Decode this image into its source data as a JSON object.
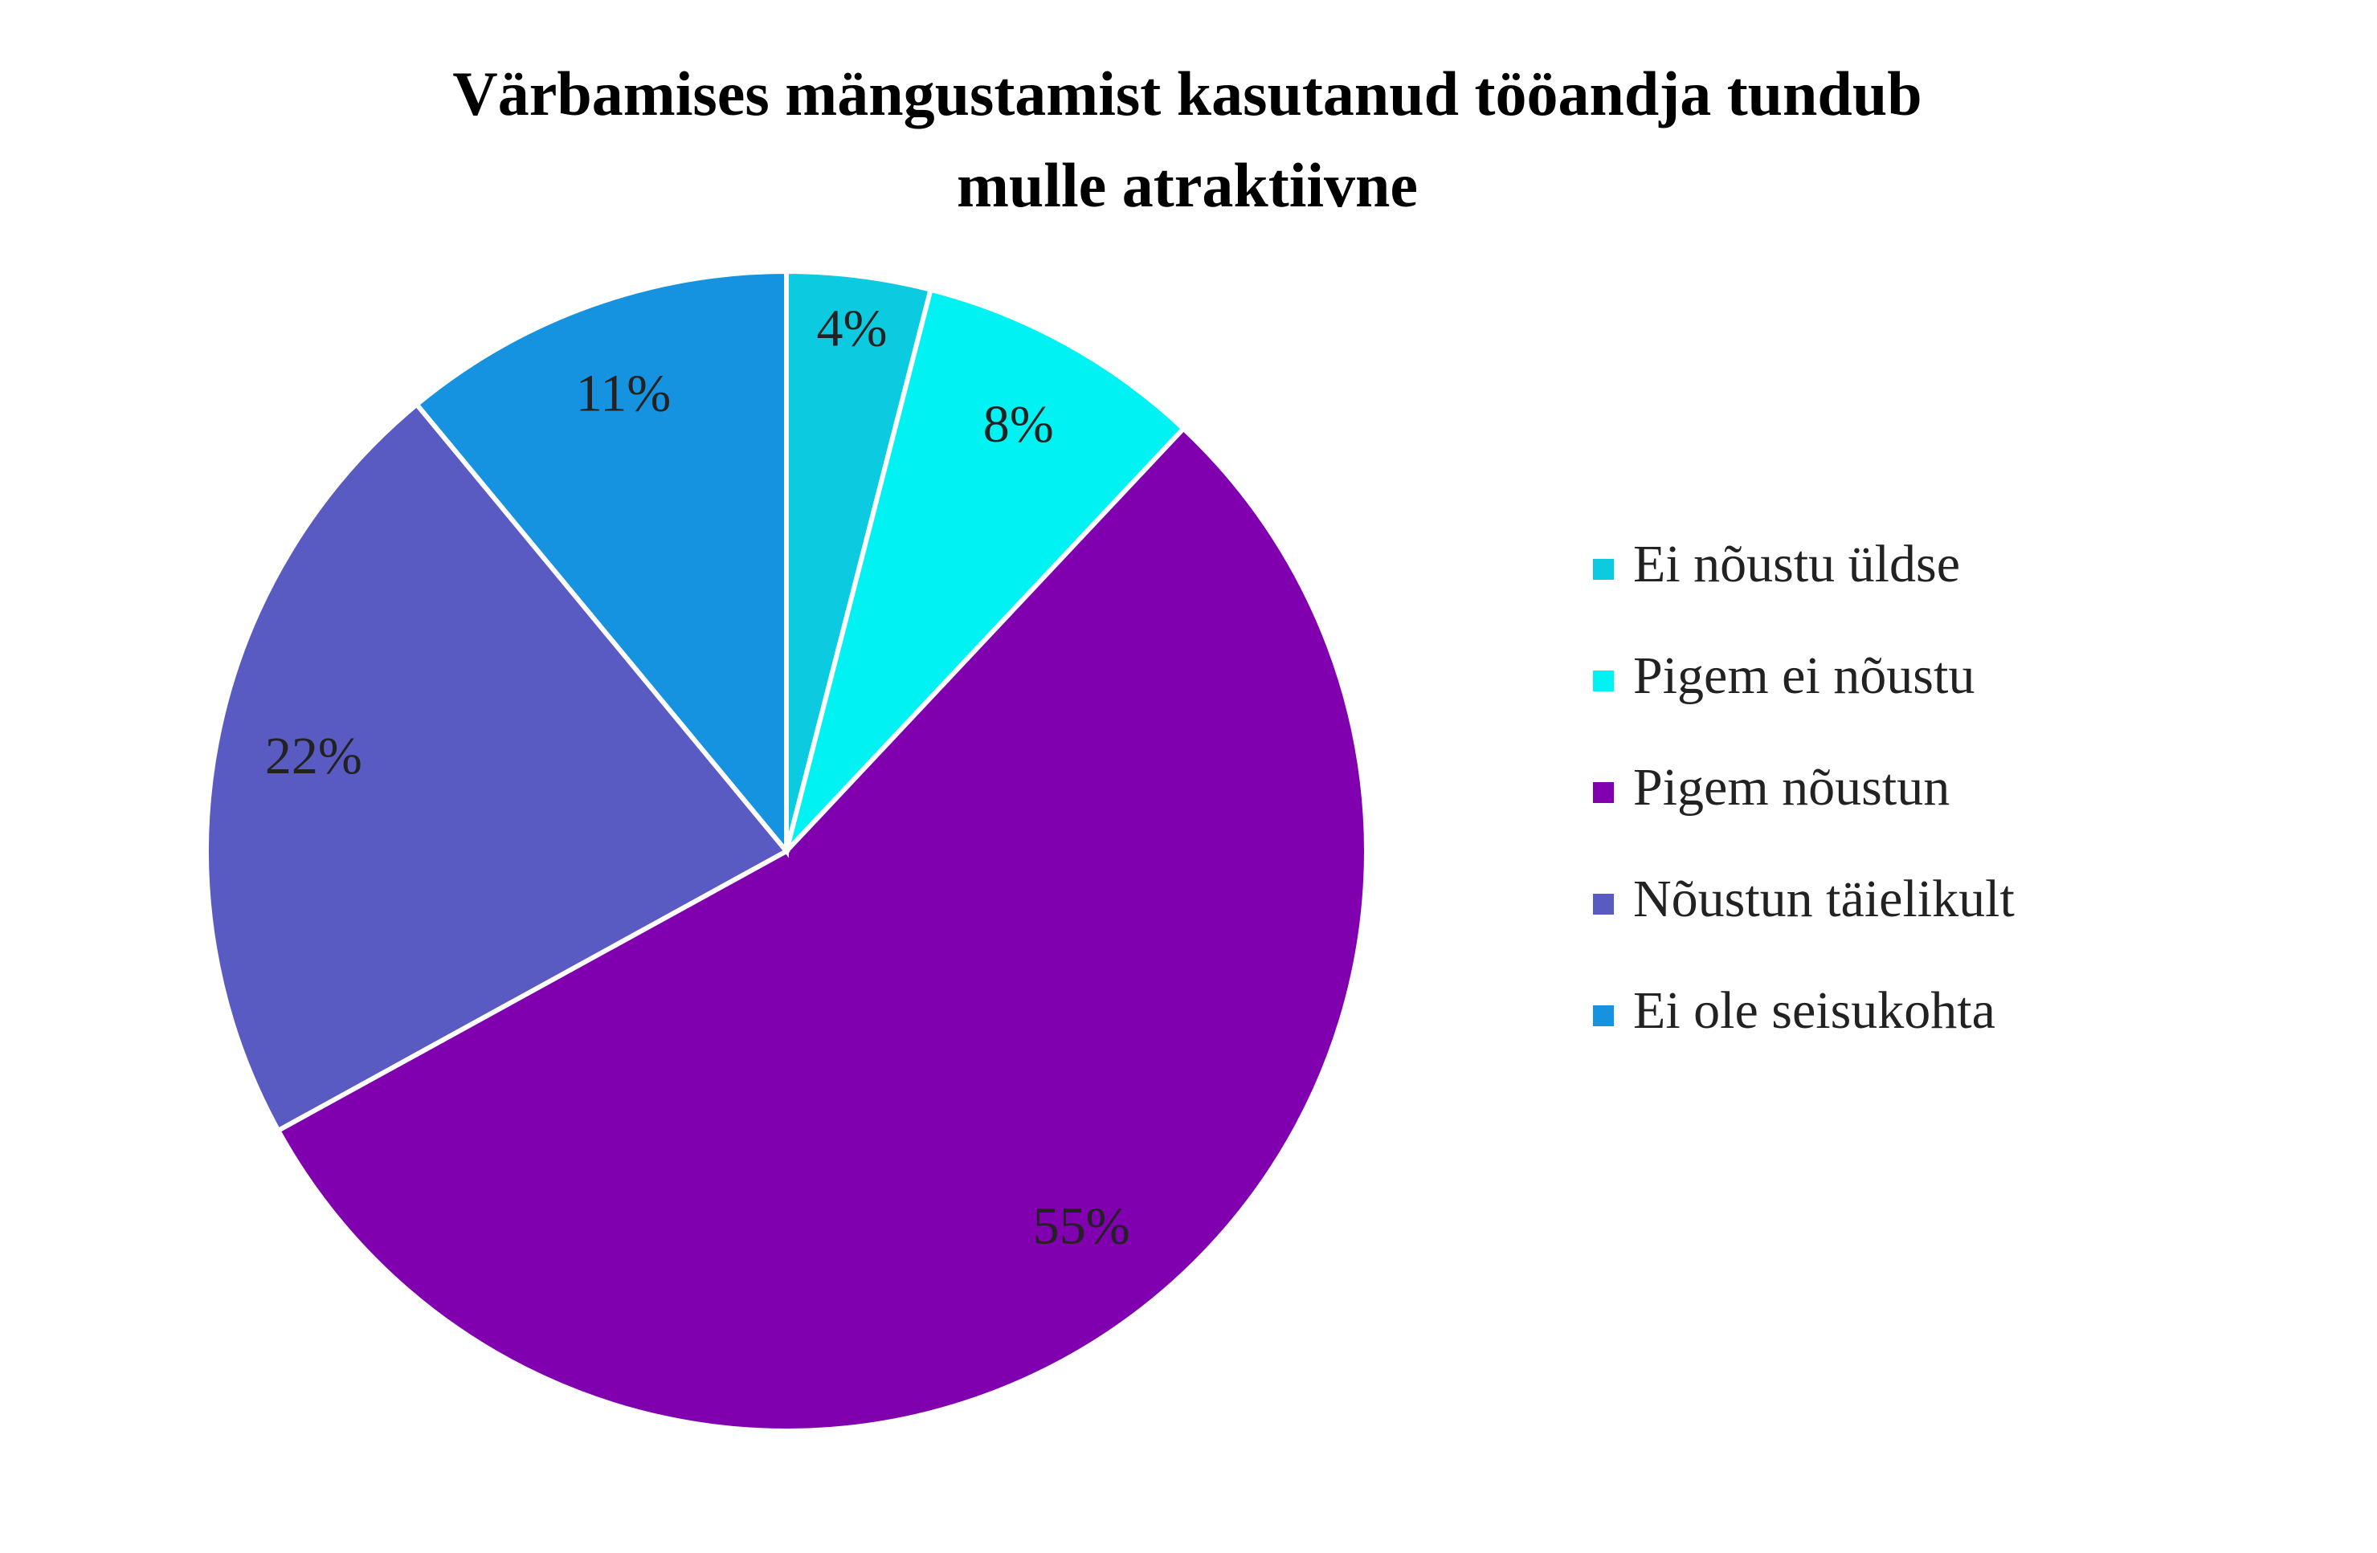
{
  "chart_data": {
    "type": "pie",
    "title": "Värbamises mängustamist kasutanud tööandja tundub mulle atraktiivne",
    "categories": [
      "Ei nõustu üldse",
      "Pigem ei nõustu",
      "Pigem nõustun",
      "Nõustun täielikult",
      "Ei ole seisukohta"
    ],
    "values": [
      4,
      8,
      55,
      22,
      11
    ],
    "value_labels": [
      "4%",
      "8%",
      "55%",
      "22%",
      "11%"
    ],
    "colors": [
      "#0ccbe0",
      "#00f2f2",
      "#8000b0",
      "#5a5bc2",
      "#1592e0"
    ],
    "legend": "right"
  }
}
